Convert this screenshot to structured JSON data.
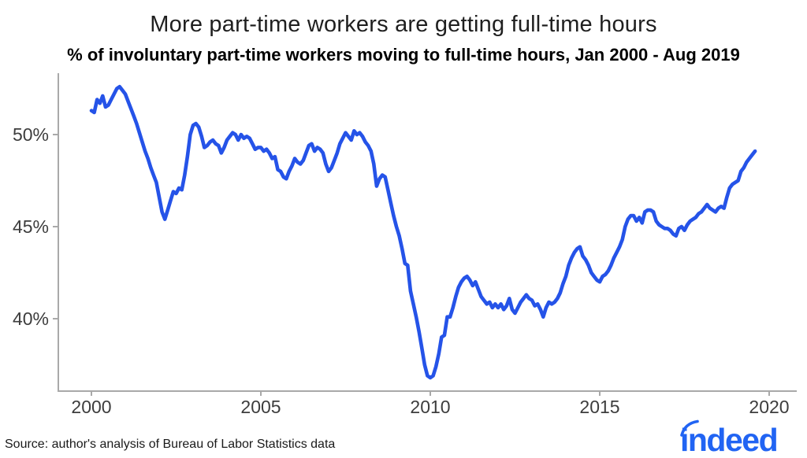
{
  "header": {
    "title": "More part-time workers are getting full-time hours",
    "subtitle": "% of involuntary part-time workers moving to full-time hours, Jan 2000 - Aug 2019"
  },
  "footer": {
    "source": "Source: author's analysis of Bureau of Labor Statistics data"
  },
  "logo": {
    "text": "indeed",
    "color": "#2164f3"
  },
  "chart_data": {
    "type": "line",
    "title": "More part-time workers are getting full-time hours",
    "subtitle": "% of involuntary part-time workers moving to full-time hours, Jan 2000 - Aug 2019",
    "grid": false,
    "legend": false,
    "x_axis": {
      "ticks": [
        2000,
        2005,
        2010,
        2015,
        2020
      ],
      "range": [
        1999.0,
        2020.8
      ]
    },
    "y_axis": {
      "ticks": [
        {
          "value": 50,
          "label": "50%"
        },
        {
          "value": 45,
          "label": "45%"
        },
        {
          "value": 40,
          "label": "40%"
        }
      ],
      "range": [
        36.1,
        53.2
      ]
    },
    "axis_color": "#a9a9a9",
    "tick_label_color": "#3d3d3d",
    "series": [
      {
        "name": "Involuntary part-time workers moving to full-time hours",
        "color": "#2553e8",
        "start": "2000-01",
        "end": "2019-08",
        "frequency": "monthly",
        "values": [
          51.3,
          51.2,
          51.9,
          51.7,
          52.1,
          51.5,
          51.6,
          51.9,
          52.2,
          52.5,
          52.6,
          52.4,
          52.2,
          51.8,
          51.4,
          51.0,
          50.6,
          50.1,
          49.6,
          49.1,
          48.7,
          48.2,
          47.8,
          47.4,
          46.6,
          45.8,
          45.4,
          45.9,
          46.4,
          46.9,
          46.8,
          47.1,
          47.0,
          47.8,
          48.8,
          50.0,
          50.5,
          50.6,
          50.4,
          49.9,
          49.3,
          49.4,
          49.6,
          49.7,
          49.5,
          49.4,
          49.0,
          49.3,
          49.7,
          49.9,
          50.1,
          50.0,
          49.7,
          50.0,
          49.8,
          49.9,
          49.8,
          49.5,
          49.2,
          49.3,
          49.3,
          49.1,
          49.2,
          49.0,
          48.7,
          48.8,
          48.1,
          48.0,
          47.7,
          47.6,
          48.0,
          48.3,
          48.7,
          48.5,
          48.4,
          48.6,
          49.0,
          49.4,
          49.5,
          49.1,
          49.3,
          49.2,
          49.0,
          48.4,
          48.0,
          48.2,
          48.6,
          49.0,
          49.5,
          49.8,
          50.1,
          49.9,
          49.7,
          50.2,
          50.0,
          50.1,
          49.9,
          49.6,
          49.4,
          49.1,
          48.4,
          47.2,
          47.6,
          47.8,
          47.7,
          47.0,
          46.3,
          45.6,
          45.0,
          44.5,
          43.8,
          43.0,
          42.9,
          41.5,
          40.8,
          40.1,
          39.3,
          38.4,
          37.5,
          36.9,
          36.8,
          36.9,
          37.4,
          38.1,
          39.0,
          39.1,
          40.1,
          40.1,
          40.6,
          41.2,
          41.7,
          42.0,
          42.2,
          42.3,
          42.1,
          41.8,
          42.0,
          41.6,
          41.2,
          41.0,
          40.8,
          40.9,
          40.6,
          40.8,
          40.6,
          40.8,
          40.5,
          40.7,
          41.1,
          40.5,
          40.3,
          40.6,
          40.9,
          41.1,
          41.3,
          41.1,
          41.0,
          40.7,
          40.8,
          40.5,
          40.1,
          40.6,
          40.9,
          40.8,
          40.9,
          41.1,
          41.4,
          41.9,
          42.3,
          42.9,
          43.3,
          43.6,
          43.8,
          43.9,
          43.4,
          43.2,
          42.9,
          42.5,
          42.3,
          42.1,
          42.0,
          42.3,
          42.4,
          42.6,
          42.9,
          43.3,
          43.6,
          43.9,
          44.3,
          45.0,
          45.4,
          45.6,
          45.6,
          45.3,
          45.5,
          45.2,
          45.8,
          45.9,
          45.9,
          45.8,
          45.3,
          45.1,
          45.0,
          44.9,
          44.9,
          44.8,
          44.6,
          44.5,
          44.9,
          45.0,
          44.8,
          45.1,
          45.3,
          45.4,
          45.5,
          45.7,
          45.8,
          46.0,
          46.2,
          46.0,
          45.9,
          45.8,
          46.0,
          46.1,
          46.0,
          46.6,
          47.1,
          47.3,
          47.4,
          47.5,
          48.0,
          48.2,
          48.5,
          48.7,
          48.9,
          49.1
        ]
      }
    ]
  }
}
